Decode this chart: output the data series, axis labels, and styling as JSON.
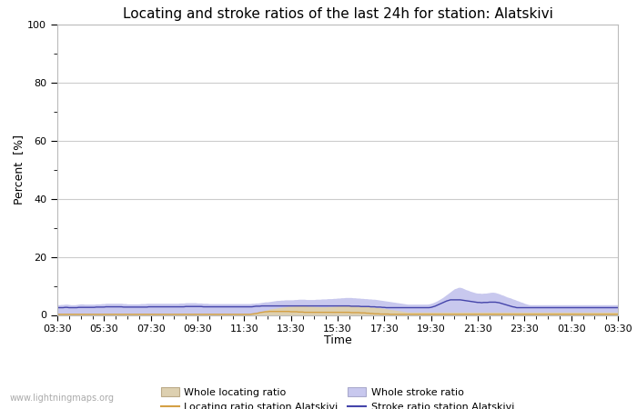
{
  "title": "Locating and stroke ratios of the last 24h for station: Alatskivi",
  "xlabel": "Time",
  "ylabel": "Percent  [%]",
  "watermark": "www.lightningmaps.org",
  "ylim": [
    0,
    100
  ],
  "yticks": [
    0,
    20,
    40,
    60,
    80,
    100
  ],
  "yticks_minor": [
    10,
    30,
    50,
    70,
    90
  ],
  "x_labels": [
    "03:30",
    "05:30",
    "07:30",
    "09:30",
    "11:30",
    "13:30",
    "15:30",
    "17:30",
    "19:30",
    "21:30",
    "23:30",
    "01:30",
    "03:30"
  ],
  "whole_locating_fill_color": "#ddd0b0",
  "whole_stroke_fill_color": "#c8c8ee",
  "locating_line_color": "#d4a044",
  "stroke_line_color": "#4444aa",
  "background_color": "#ffffff",
  "plot_bg_color": "#ffffff",
  "grid_color": "#cccccc",
  "title_fontsize": 11,
  "n_points": 289,
  "whole_locating_ratio": [
    0.3,
    0.3,
    0.3,
    0.3,
    0.3,
    0.3,
    0.3,
    0.3,
    0.3,
    0.3,
    0.3,
    0.3,
    0.3,
    0.3,
    0.3,
    0.3,
    0.3,
    0.3,
    0.3,
    0.3,
    0.3,
    0.3,
    0.3,
    0.3,
    0.3,
    0.3,
    0.3,
    0.3,
    0.3,
    0.3,
    0.3,
    0.3,
    0.3,
    0.3,
    0.3,
    0.3,
    0.3,
    0.3,
    0.3,
    0.3,
    0.3,
    0.3,
    0.3,
    0.3,
    0.3,
    0.3,
    0.3,
    0.3,
    0.3,
    0.3,
    0.3,
    0.3,
    0.3,
    0.3,
    0.3,
    0.3,
    0.3,
    0.3,
    0.3,
    0.3,
    0.3,
    0.3,
    0.3,
    0.3,
    0.3,
    0.3,
    0.3,
    0.3,
    0.3,
    0.3,
    0.3,
    0.3,
    0.3,
    0.3,
    0.3,
    0.3,
    0.3,
    0.3,
    0.3,
    0.3,
    0.3,
    0.3,
    0.3,
    0.3,
    0.3,
    0.3,
    0.3,
    0.3,
    0.3,
    0.3,
    0.3,
    0.3,
    0.3,
    0.3,
    0.3,
    0.3,
    0.3,
    0.3,
    0.3,
    0.3,
    0.4,
    0.5,
    0.6,
    0.8,
    1.0,
    1.2,
    1.4,
    1.6,
    1.8,
    2.0,
    2.1,
    2.2,
    2.3,
    2.4,
    2.5,
    2.6,
    2.7,
    2.8,
    2.9,
    3.0,
    3.0,
    3.0,
    3.1,
    3.1,
    3.2,
    3.2,
    3.2,
    3.1,
    3.1,
    3.0,
    3.0,
    3.0,
    2.9,
    2.9,
    2.9,
    2.8,
    2.8,
    2.8,
    2.8,
    2.9,
    2.9,
    2.9,
    3.0,
    3.0,
    3.1,
    3.1,
    3.2,
    3.2,
    3.3,
    3.3,
    3.3,
    3.2,
    3.2,
    3.1,
    3.1,
    3.0,
    3.0,
    2.9,
    2.9,
    2.8,
    2.8,
    2.7,
    2.7,
    2.6,
    2.6,
    2.5,
    2.4,
    2.3,
    2.2,
    2.1,
    2.0,
    1.9,
    1.8,
    1.7,
    1.6,
    1.5,
    1.4,
    1.3,
    1.2,
    1.1,
    1.0,
    1.0,
    1.0,
    1.0,
    1.0,
    1.0,
    1.0,
    1.0,
    1.0,
    1.0,
    1.0,
    1.0,
    1.0,
    1.0,
    1.0,
    1.0,
    1.0,
    1.0,
    1.0,
    1.0,
    1.0,
    1.0,
    1.0,
    1.0,
    1.0,
    1.0,
    1.0,
    1.0,
    1.0,
    1.0,
    1.0,
    1.0,
    1.0,
    1.0,
    1.0,
    1.0,
    1.0,
    1.0,
    1.0,
    1.0,
    1.0,
    1.0,
    1.0,
    1.0,
    1.0,
    1.0,
    1.0,
    1.0,
    1.0,
    1.0,
    1.0,
    1.0,
    1.0,
    1.0,
    1.0,
    1.0,
    1.0,
    1.0,
    1.0,
    1.0,
    1.0,
    1.0,
    1.0,
    1.0,
    1.0,
    1.0,
    1.0,
    1.0,
    1.0,
    1.0,
    1.0,
    1.0,
    1.0,
    1.0,
    1.0,
    1.0,
    1.0,
    1.0,
    1.0,
    1.0,
    1.0,
    1.0,
    1.0,
    1.0,
    1.0,
    1.0,
    1.0,
    1.0,
    1.0,
    1.0,
    1.0,
    1.0,
    1.0,
    1.0,
    1.0,
    1.0,
    1.0,
    1.0,
    1.0,
    1.0,
    1.0,
    1.0,
    1.0,
    1.0,
    1.0,
    1.0,
    1.0,
    1.0,
    1.0
  ],
  "locating_ratio_station": [
    0.2,
    0.2,
    0.2,
    0.2,
    0.2,
    0.2,
    0.2,
    0.2,
    0.2,
    0.2,
    0.2,
    0.2,
    0.2,
    0.2,
    0.2,
    0.2,
    0.2,
    0.2,
    0.2,
    0.2,
    0.2,
    0.2,
    0.2,
    0.2,
    0.2,
    0.2,
    0.2,
    0.2,
    0.2,
    0.2,
    0.2,
    0.2,
    0.2,
    0.2,
    0.2,
    0.2,
    0.2,
    0.2,
    0.2,
    0.2,
    0.2,
    0.2,
    0.2,
    0.2,
    0.2,
    0.2,
    0.2,
    0.2,
    0.2,
    0.2,
    0.2,
    0.2,
    0.2,
    0.2,
    0.2,
    0.2,
    0.2,
    0.2,
    0.2,
    0.2,
    0.2,
    0.2,
    0.2,
    0.2,
    0.2,
    0.2,
    0.2,
    0.2,
    0.2,
    0.2,
    0.2,
    0.2,
    0.2,
    0.2,
    0.2,
    0.2,
    0.2,
    0.2,
    0.2,
    0.2,
    0.2,
    0.2,
    0.2,
    0.2,
    0.2,
    0.2,
    0.2,
    0.2,
    0.2,
    0.2,
    0.2,
    0.2,
    0.2,
    0.2,
    0.2,
    0.2,
    0.2,
    0.2,
    0.2,
    0.2,
    0.3,
    0.4,
    0.5,
    0.6,
    0.8,
    0.9,
    1.0,
    1.1,
    1.1,
    1.2,
    1.2,
    1.2,
    1.2,
    1.2,
    1.2,
    1.2,
    1.2,
    1.2,
    1.2,
    1.2,
    1.1,
    1.1,
    1.1,
    1.1,
    1.0,
    1.0,
    1.0,
    0.9,
    0.9,
    0.9,
    0.9,
    0.9,
    0.9,
    0.9,
    0.9,
    0.9,
    0.9,
    0.9,
    0.9,
    0.9,
    0.9,
    0.9,
    0.9,
    0.9,
    0.9,
    0.9,
    0.9,
    0.9,
    0.9,
    0.9,
    0.9,
    0.8,
    0.8,
    0.8,
    0.8,
    0.8,
    0.7,
    0.7,
    0.7,
    0.6,
    0.6,
    0.5,
    0.5,
    0.4,
    0.4,
    0.4,
    0.3,
    0.3,
    0.3,
    0.3,
    0.3,
    0.2,
    0.2,
    0.2,
    0.2,
    0.2,
    0.2,
    0.2,
    0.2,
    0.2,
    0.2,
    0.2,
    0.2,
    0.2,
    0.2,
    0.2,
    0.2,
    0.2,
    0.2,
    0.2,
    0.2,
    0.2,
    0.2,
    0.2,
    0.2,
    0.2,
    0.2,
    0.2,
    0.2,
    0.2,
    0.2,
    0.2,
    0.2,
    0.2,
    0.2,
    0.2,
    0.2,
    0.2,
    0.2,
    0.2,
    0.2,
    0.2,
    0.2,
    0.2,
    0.2,
    0.2,
    0.2,
    0.2,
    0.2,
    0.2,
    0.2,
    0.2,
    0.2,
    0.2,
    0.2,
    0.2,
    0.2,
    0.2,
    0.2,
    0.2,
    0.2,
    0.2,
    0.2,
    0.2,
    0.2,
    0.2,
    0.2,
    0.2,
    0.2,
    0.2,
    0.2,
    0.2,
    0.2,
    0.2,
    0.2,
    0.2,
    0.2,
    0.2,
    0.2,
    0.2,
    0.2,
    0.2,
    0.2,
    0.2,
    0.2,
    0.2,
    0.2,
    0.2,
    0.2,
    0.2,
    0.2,
    0.2,
    0.2,
    0.2,
    0.2,
    0.2,
    0.2,
    0.2,
    0.2,
    0.2,
    0.2,
    0.2,
    0.2,
    0.2,
    0.2,
    0.2,
    0.2,
    0.2,
    0.2,
    0.2,
    0.2,
    0.2,
    0.2,
    0.2,
    0.2,
    0.2,
    0.2,
    0.2,
    0.2
  ],
  "whole_stroke_ratio": [
    3.5,
    3.5,
    3.6,
    3.6,
    3.7,
    3.7,
    3.6,
    3.5,
    3.5,
    3.5,
    3.6,
    3.7,
    3.8,
    3.8,
    3.7,
    3.7,
    3.7,
    3.7,
    3.7,
    3.7,
    3.8,
    3.8,
    3.8,
    3.9,
    3.9,
    4.0,
    4.0,
    4.0,
    4.0,
    4.0,
    4.0,
    4.0,
    4.0,
    4.0,
    3.9,
    3.9,
    3.8,
    3.8,
    3.8,
    3.8,
    3.8,
    3.8,
    3.8,
    3.9,
    3.9,
    3.9,
    4.0,
    4.0,
    4.0,
    4.0,
    4.0,
    4.0,
    4.0,
    4.0,
    4.0,
    4.0,
    4.0,
    4.0,
    4.0,
    4.0,
    4.0,
    4.0,
    4.0,
    4.1,
    4.1,
    4.1,
    4.2,
    4.2,
    4.2,
    4.2,
    4.2,
    4.2,
    4.1,
    4.1,
    4.1,
    4.0,
    4.0,
    4.0,
    3.9,
    3.9,
    3.9,
    3.9,
    3.9,
    3.9,
    3.9,
    3.9,
    3.9,
    3.9,
    3.9,
    3.9,
    3.9,
    3.9,
    3.9,
    3.9,
    3.9,
    3.9,
    3.9,
    3.9,
    3.9,
    3.9,
    4.0,
    4.0,
    4.1,
    4.1,
    4.2,
    4.3,
    4.4,
    4.5,
    4.5,
    4.6,
    4.7,
    4.8,
    4.9,
    5.0,
    5.0,
    5.1,
    5.1,
    5.2,
    5.2,
    5.2,
    5.2,
    5.2,
    5.3,
    5.3,
    5.4,
    5.4,
    5.4,
    5.4,
    5.3,
    5.3,
    5.3,
    5.3,
    5.3,
    5.4,
    5.4,
    5.4,
    5.5,
    5.5,
    5.5,
    5.6,
    5.6,
    5.6,
    5.7,
    5.7,
    5.8,
    5.8,
    5.9,
    5.9,
    6.0,
    6.0,
    6.0,
    6.0,
    5.9,
    5.9,
    5.8,
    5.8,
    5.7,
    5.7,
    5.6,
    5.6,
    5.5,
    5.5,
    5.4,
    5.4,
    5.3,
    5.2,
    5.1,
    5.0,
    4.9,
    4.8,
    4.7,
    4.6,
    4.5,
    4.4,
    4.3,
    4.2,
    4.1,
    4.0,
    3.9,
    3.8,
    3.7,
    3.7,
    3.7,
    3.7,
    3.7,
    3.7,
    3.7,
    3.7,
    3.7,
    3.7,
    3.7,
    3.8,
    4.0,
    4.2,
    4.5,
    4.8,
    5.2,
    5.6,
    6.0,
    6.5,
    7.0,
    7.5,
    8.0,
    8.5,
    9.0,
    9.2,
    9.5,
    9.5,
    9.3,
    9.0,
    8.7,
    8.5,
    8.2,
    8.0,
    7.8,
    7.6,
    7.5,
    7.5,
    7.4,
    7.5,
    7.5,
    7.6,
    7.7,
    7.8,
    7.8,
    7.7,
    7.5,
    7.3,
    7.0,
    6.8,
    6.5,
    6.2,
    6.0,
    5.8,
    5.5,
    5.3,
    5.0,
    4.8,
    4.5,
    4.3,
    4.0,
    3.8,
    3.6,
    3.5,
    3.5,
    3.5,
    3.5,
    3.5,
    3.5,
    3.5,
    3.5,
    3.5,
    3.5,
    3.5,
    3.5,
    3.5,
    3.5,
    3.5,
    3.5,
    3.5,
    3.5,
    3.5,
    3.5,
    3.5,
    3.5,
    3.5,
    3.5,
    3.5,
    3.5,
    3.5,
    3.5,
    3.5,
    3.5,
    3.5,
    3.5,
    3.5,
    3.5,
    3.5,
    3.5,
    3.5,
    3.5,
    3.5,
    3.5,
    3.5,
    3.5,
    3.5,
    3.5,
    3.5,
    3.5
  ],
  "stroke_ratio_station": [
    2.5,
    2.5,
    2.5,
    2.5,
    2.6,
    2.6,
    2.5,
    2.5,
    2.5,
    2.5,
    2.5,
    2.6,
    2.6,
    2.6,
    2.6,
    2.6,
    2.6,
    2.6,
    2.6,
    2.6,
    2.7,
    2.7,
    2.7,
    2.7,
    2.7,
    2.8,
    2.8,
    2.8,
    2.8,
    2.8,
    2.8,
    2.8,
    2.8,
    2.8,
    2.7,
    2.7,
    2.7,
    2.7,
    2.7,
    2.7,
    2.7,
    2.7,
    2.7,
    2.7,
    2.7,
    2.7,
    2.7,
    2.8,
    2.8,
    2.8,
    2.8,
    2.8,
    2.8,
    2.8,
    2.8,
    2.8,
    2.8,
    2.8,
    2.8,
    2.8,
    2.8,
    2.8,
    2.8,
    2.8,
    2.8,
    2.8,
    2.9,
    2.9,
    2.9,
    2.9,
    2.9,
    2.9,
    2.9,
    2.9,
    2.9,
    2.8,
    2.8,
    2.8,
    2.8,
    2.8,
    2.8,
    2.8,
    2.8,
    2.8,
    2.8,
    2.8,
    2.8,
    2.8,
    2.8,
    2.8,
    2.8,
    2.8,
    2.8,
    2.8,
    2.8,
    2.8,
    2.8,
    2.8,
    2.8,
    2.8,
    2.8,
    2.9,
    3.0,
    3.0,
    3.0,
    3.1,
    3.1,
    3.1,
    3.1,
    3.1,
    3.1,
    3.1,
    3.1,
    3.1,
    3.1,
    3.1,
    3.1,
    3.1,
    3.1,
    3.1,
    3.1,
    3.1,
    3.1,
    3.1,
    3.1,
    3.1,
    3.1,
    3.1,
    3.1,
    3.1,
    3.1,
    3.1,
    3.1,
    3.1,
    3.1,
    3.1,
    3.1,
    3.1,
    3.1,
    3.1,
    3.1,
    3.1,
    3.1,
    3.1,
    3.1,
    3.1,
    3.1,
    3.1,
    3.1,
    3.1,
    3.1,
    3.0,
    3.0,
    3.0,
    3.0,
    3.0,
    2.9,
    2.9,
    2.9,
    2.9,
    2.9,
    2.8,
    2.8,
    2.8,
    2.7,
    2.7,
    2.7,
    2.6,
    2.6,
    2.5,
    2.5,
    2.5,
    2.5,
    2.5,
    2.5,
    2.5,
    2.5,
    2.5,
    2.5,
    2.5,
    2.5,
    2.5,
    2.5,
    2.5,
    2.5,
    2.5,
    2.5,
    2.5,
    2.5,
    2.5,
    2.5,
    2.5,
    2.6,
    2.8,
    3.0,
    3.3,
    3.6,
    3.9,
    4.2,
    4.5,
    4.8,
    5.0,
    5.2,
    5.2,
    5.2,
    5.2,
    5.2,
    5.2,
    5.1,
    5.0,
    4.9,
    4.8,
    4.7,
    4.6,
    4.5,
    4.4,
    4.3,
    4.3,
    4.2,
    4.3,
    4.3,
    4.3,
    4.4,
    4.4,
    4.4,
    4.4,
    4.3,
    4.2,
    4.0,
    3.8,
    3.6,
    3.4,
    3.2,
    3.0,
    2.8,
    2.7,
    2.5,
    2.5,
    2.5,
    2.5,
    2.5,
    2.5,
    2.5,
    2.5,
    2.5,
    2.5,
    2.5,
    2.5,
    2.5,
    2.5,
    2.5,
    2.5,
    2.5,
    2.5,
    2.5,
    2.5,
    2.5,
    2.5,
    2.5,
    2.5,
    2.5,
    2.5,
    2.5,
    2.5,
    2.5,
    2.5,
    2.5,
    2.5,
    2.5,
    2.5,
    2.5,
    2.5,
    2.5,
    2.5,
    2.5,
    2.5,
    2.5,
    2.5,
    2.5,
    2.5,
    2.5,
    2.5,
    2.5,
    2.5,
    2.5,
    2.5,
    2.5,
    2.5,
    2.5
  ]
}
